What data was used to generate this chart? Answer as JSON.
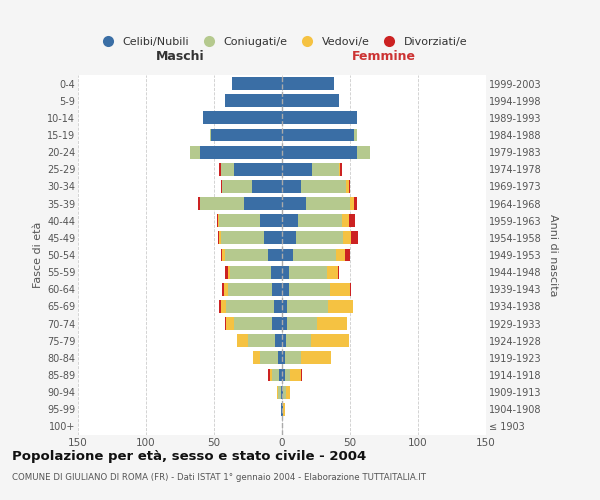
{
  "age_groups": [
    "100+",
    "95-99",
    "90-94",
    "85-89",
    "80-84",
    "75-79",
    "70-74",
    "65-69",
    "60-64",
    "55-59",
    "50-54",
    "45-49",
    "40-44",
    "35-39",
    "30-34",
    "25-29",
    "20-24",
    "15-19",
    "10-14",
    "5-9",
    "0-4"
  ],
  "birth_years": [
    "≤ 1903",
    "1904-1908",
    "1909-1913",
    "1914-1918",
    "1919-1923",
    "1924-1928",
    "1929-1933",
    "1934-1938",
    "1939-1943",
    "1944-1948",
    "1949-1953",
    "1954-1958",
    "1959-1963",
    "1964-1968",
    "1969-1973",
    "1974-1978",
    "1979-1983",
    "1984-1988",
    "1989-1993",
    "1994-1998",
    "1999-2003"
  ],
  "male": {
    "celibi": [
      0,
      1,
      1,
      2,
      3,
      5,
      7,
      6,
      7,
      8,
      10,
      13,
      16,
      28,
      22,
      35,
      60,
      52,
      58,
      42,
      37
    ],
    "coniugati": [
      0,
      0,
      2,
      5,
      13,
      20,
      28,
      35,
      33,
      30,
      32,
      32,
      30,
      32,
      22,
      10,
      8,
      1,
      0,
      0,
      0
    ],
    "vedovi": [
      0,
      0,
      1,
      2,
      5,
      8,
      6,
      4,
      3,
      2,
      2,
      1,
      1,
      0,
      0,
      0,
      0,
      0,
      0,
      0,
      0
    ],
    "divorziati": [
      0,
      0,
      0,
      1,
      0,
      0,
      1,
      1,
      1,
      2,
      1,
      1,
      1,
      2,
      1,
      1,
      0,
      0,
      0,
      0,
      0
    ]
  },
  "female": {
    "nubili": [
      0,
      1,
      1,
      2,
      2,
      3,
      4,
      4,
      5,
      5,
      8,
      10,
      12,
      18,
      14,
      22,
      55,
      53,
      55,
      42,
      38
    ],
    "coniugate": [
      0,
      0,
      2,
      4,
      12,
      18,
      22,
      30,
      30,
      28,
      32,
      35,
      32,
      32,
      33,
      20,
      10,
      2,
      0,
      0,
      0
    ],
    "vedove": [
      0,
      1,
      3,
      8,
      22,
      28,
      22,
      18,
      15,
      8,
      6,
      6,
      5,
      3,
      2,
      1,
      0,
      0,
      0,
      0,
      0
    ],
    "divorziate": [
      0,
      0,
      0,
      1,
      0,
      0,
      0,
      0,
      1,
      1,
      4,
      5,
      5,
      2,
      1,
      1,
      0,
      0,
      0,
      0,
      0
    ]
  },
  "colors": {
    "celibi": "#3a6ea5",
    "coniugati": "#b5c98e",
    "vedovi": "#f5c242",
    "divorziati": "#cc2222"
  },
  "title": "Popolazione per età, sesso e stato civile - 2004",
  "subtitle": "COMUNE DI GIULIANO DI ROMA (FR) - Dati ISTAT 1° gennaio 2004 - Elaborazione TUTTAITALIA.IT",
  "xlabel_left": "Maschi",
  "xlabel_right": "Femmine",
  "ylabel_left": "Fasce di età",
  "ylabel_right": "Anni di nascita",
  "xlim": 150,
  "bg_color": "#f5f5f5",
  "plot_bg": "#ffffff",
  "legend_labels": [
    "Celibi/Nubili",
    "Coniugati/e",
    "Vedovi/e",
    "Divorziati/e"
  ]
}
